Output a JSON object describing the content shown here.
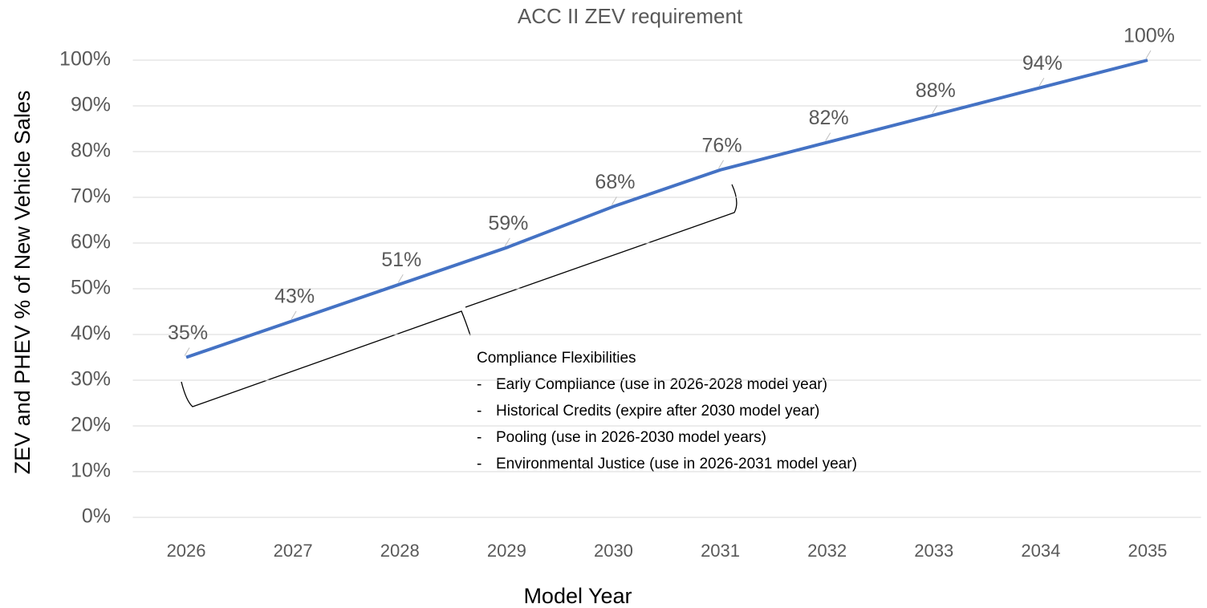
{
  "chart_data": {
    "type": "line",
    "title": "ACC II ZEV requirement",
    "x_label": "Model Year",
    "y_label": "ZEV and PHEV % of New Vehicle Sales",
    "categories": [
      "2026",
      "2027",
      "2028",
      "2029",
      "2030",
      "2031",
      "2032",
      "2033",
      "2034",
      "2035"
    ],
    "values": [
      35,
      43,
      51,
      59,
      68,
      76,
      82,
      88,
      94,
      100
    ],
    "value_labels": [
      "35%",
      "43%",
      "51%",
      "59%",
      "68%",
      "76%",
      "82%",
      "88%",
      "94%",
      "100%"
    ],
    "color": "#4472c4",
    "ylim": [
      0,
      100
    ],
    "yticks": [
      {
        "value": 0,
        "label": "0%"
      },
      {
        "value": 10,
        "label": "10%"
      },
      {
        "value": 20,
        "label": "20%"
      },
      {
        "value": 30,
        "label": "30%"
      },
      {
        "value": 40,
        "label": "40%"
      },
      {
        "value": 50,
        "label": "50%"
      },
      {
        "value": 60,
        "label": "60%"
      },
      {
        "value": 70,
        "label": "70%"
      },
      {
        "value": 80,
        "label": "80%"
      },
      {
        "value": 90,
        "label": "90%"
      },
      {
        "value": 100,
        "label": "100%"
      }
    ],
    "grid": true,
    "annotation": {
      "heading": "Compliance Flexibilities",
      "items": [
        "Early Compliance (use in 2026-2028 model year)",
        "Historical Credits (expire after 2030 model year)",
        "Pooling (use in 2026-2030 model years)",
        "Environmental Justice (use in 2026-2031 model year)"
      ]
    }
  }
}
